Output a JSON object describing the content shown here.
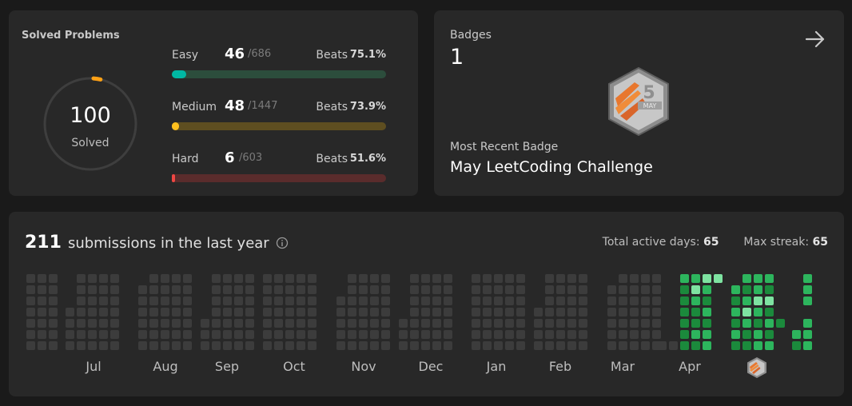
{
  "solved": {
    "title": "Solved Problems",
    "total": "100",
    "total_label": "Solved",
    "difficulties": [
      {
        "name": "Easy",
        "count": "46",
        "total": "/686",
        "beats_label": "Beats",
        "beats": "75.1%",
        "progress": 0.067,
        "color": "#00b8a3",
        "track": "#2c4d3c"
      },
      {
        "name": "Medium",
        "count": "48",
        "total": "/1447",
        "beats_label": "Beats",
        "beats": "73.9%",
        "progress": 0.033,
        "color": "#ffc01e",
        "track": "#5e4e20"
      },
      {
        "name": "Hard",
        "count": "6",
        "total": "/603",
        "beats_label": "Beats",
        "beats": "51.6%",
        "progress": 0.01,
        "color": "#ef4743",
        "track": "#5a2c2c"
      }
    ],
    "ring_progress": 0.0625
  },
  "badges": {
    "label": "Badges",
    "count": "1",
    "badge_day": "5",
    "badge_month": "MAY",
    "recent_label": "Most Recent Badge",
    "recent_name": "May LeetCoding Challenge"
  },
  "calendar": {
    "count": "211",
    "text": "submissions in the last year",
    "active_label": "Total active days:",
    "active_value": "65",
    "streak_label": "Max streak:",
    "streak_value": "65",
    "months": [
      "Jul",
      "Aug",
      "Sep",
      "Oct",
      "Nov",
      "Dec",
      "Jan",
      "Feb",
      "Mar",
      "Apr"
    ],
    "colors": {
      "empty": "#3c3c3c",
      "low": "#1b8a3c",
      "mid": "#2db55d",
      "high": "#7ee3a1"
    }
  }
}
